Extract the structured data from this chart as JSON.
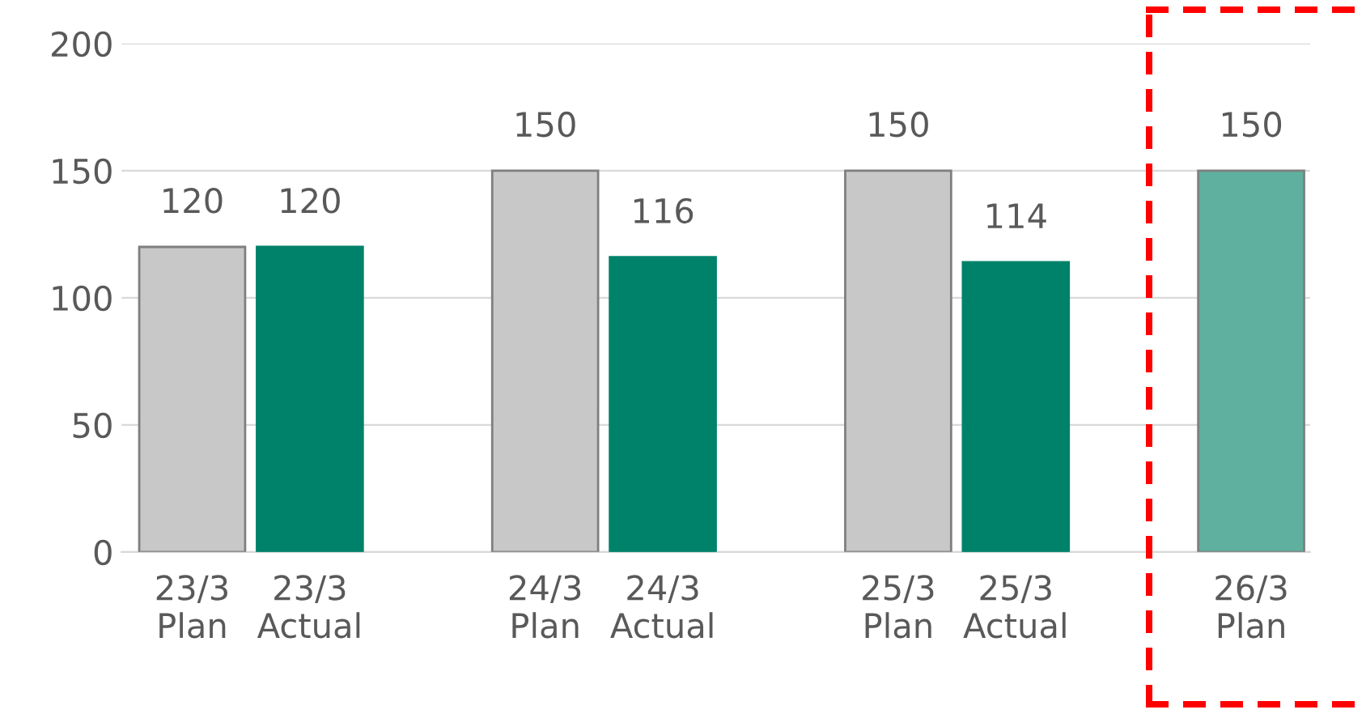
{
  "chart_data": {
    "type": "bar",
    "categories": [
      "23/3\nPlan",
      "23/3\nActual",
      null,
      "24/3\nPlan",
      "24/3\nActual",
      null,
      "25/3\nPlan",
      "25/3\nActual",
      null,
      "26/3\nPlan"
    ],
    "values": [
      120,
      120,
      null,
      150,
      116,
      null,
      150,
      114,
      null,
      150
    ],
    "colors": [
      "#c8c8c8",
      "#00826a",
      null,
      "#c8c8c8",
      "#00826a",
      null,
      "#c8c8c8",
      "#00826a",
      null,
      "#5fb09f"
    ],
    "ylim": [
      0,
      200
    ],
    "yticks": [
      0,
      50,
      100,
      150,
      200
    ],
    "grid": "y",
    "data_labels": true
  }
}
